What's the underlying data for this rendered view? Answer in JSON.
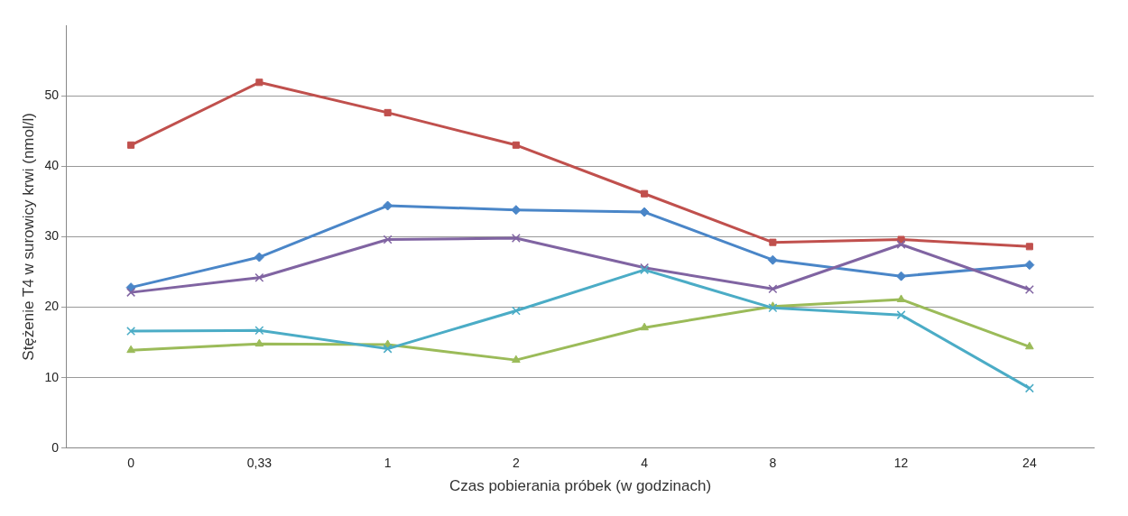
{
  "chart_data": {
    "type": "line",
    "xlabel": "Czas pobierania próbek (w godzinach)",
    "ylabel": "Stężenie T4 w surowicy krwi (nmol/l)",
    "categories": [
      "0",
      "0,33",
      "1",
      "2",
      "4",
      "8",
      "12",
      "24"
    ],
    "ylim": [
      0,
      60
    ],
    "yticks": [
      0,
      10,
      20,
      30,
      40,
      50
    ],
    "grid": "y",
    "legend": false,
    "line_style": "solid",
    "series": [
      {
        "color": "#4a86c8",
        "marker": "diamond",
        "values": [
          22.8,
          27.1,
          34.4,
          33.8,
          33.5,
          26.7,
          24.4,
          26.0
        ]
      },
      {
        "color": "#c0504d",
        "marker": "square",
        "values": [
          43,
          51.9,
          47.6,
          43,
          36.1,
          29.2,
          29.6,
          28.6
        ]
      },
      {
        "color": "#9bbb59",
        "marker": "triangle",
        "values": [
          13.9,
          14.8,
          14.7,
          12.5,
          17.1,
          20.1,
          21.1,
          14.4
        ]
      },
      {
        "color": "#8064a2",
        "marker": "cross",
        "values": [
          22.1,
          24.2,
          29.6,
          29.8,
          25.6,
          22.6,
          28.9,
          22.5
        ]
      },
      {
        "color": "#4bacc6",
        "marker": "cross",
        "values": [
          16.6,
          16.7,
          14.1,
          19.5,
          25.3,
          19.9,
          18.9,
          8.5
        ]
      }
    ]
  }
}
